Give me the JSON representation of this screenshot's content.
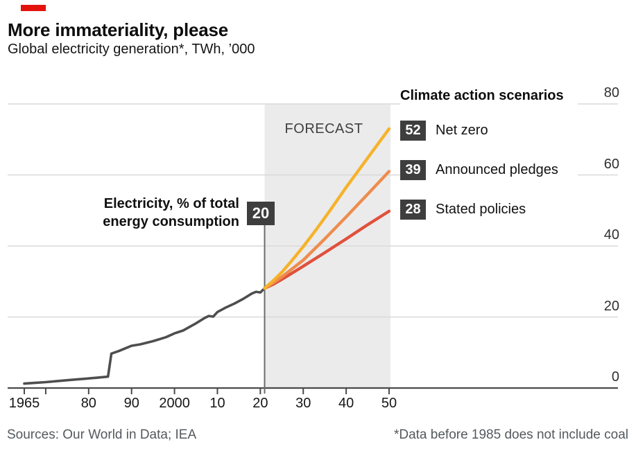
{
  "header": {
    "title": "More immateriality, please",
    "subtitle": "Global electricity generation*, TWh, ’000"
  },
  "footer": {
    "sources": "Sources: Our World in Data; IEA",
    "footnote": "*Data before 1985 does not include coal"
  },
  "colors": {
    "accent_red": "#E3120B",
    "forecast_bg": "#EBEBEB",
    "gridline": "#D9D9D9",
    "axis": "#4A4A4A",
    "badge_bg": "#3E3E3E",
    "badge_text": "#FFFFFF",
    "annotation_line": "#6B6B6B"
  },
  "chart_data": {
    "type": "line",
    "title": "More immateriality, please",
    "subtitle": "Global electricity generation*, TWh, ’000",
    "ylabel": "TWh, ’000",
    "xlabel": "",
    "grid": true,
    "legend_position": "top-right",
    "legend_title": "Climate action scenarios",
    "forecast_label": "FORECAST",
    "forecast_region": {
      "start_year": 2021,
      "end_year": 2050
    },
    "x_axis": {
      "range": [
        1965,
        2050
      ],
      "ticks": [
        {
          "year": 1965,
          "label": "1965"
        },
        {
          "year": 1970,
          "label": ""
        },
        {
          "year": 1980,
          "label": "80"
        },
        {
          "year": 1990,
          "label": "90"
        },
        {
          "year": 2000,
          "label": "2000"
        },
        {
          "year": 2010,
          "label": "10"
        },
        {
          "year": 2020,
          "label": "20"
        },
        {
          "year": 2030,
          "label": "30"
        },
        {
          "year": 2040,
          "label": "40"
        },
        {
          "year": 2050,
          "label": "50"
        }
      ]
    },
    "y_axis": {
      "ticks": [
        0,
        20,
        40,
        60,
        80
      ],
      "max": 80,
      "range": [
        0,
        80
      ]
    },
    "annotation": {
      "line1": "Electricity, % of total",
      "line2": "energy consumption",
      "share_pct": "20",
      "year": 2021
    },
    "series": {
      "historical": {
        "name": "Global electricity generation (historical)",
        "color": "#4E4E4E",
        "points": [
          [
            1965,
            1.25
          ],
          [
            1968,
            1.5
          ],
          [
            1970,
            1.65
          ],
          [
            1973,
            2.0
          ],
          [
            1976,
            2.3
          ],
          [
            1979,
            2.6
          ],
          [
            1982,
            2.9
          ],
          [
            1984.5,
            3.2
          ],
          [
            1985.3,
            9.7
          ],
          [
            1987,
            10.4
          ],
          [
            1989,
            11.4
          ],
          [
            1990,
            11.9
          ],
          [
            1992,
            12.3
          ],
          [
            1995,
            13.2
          ],
          [
            1998,
            14.3
          ],
          [
            2000,
            15.4
          ],
          [
            2002,
            16.2
          ],
          [
            2005,
            18.2
          ],
          [
            2007,
            19.7
          ],
          [
            2008,
            20.3
          ],
          [
            2009,
            20.1
          ],
          [
            2010,
            21.4
          ],
          [
            2012,
            22.7
          ],
          [
            2014,
            23.8
          ],
          [
            2016,
            25.1
          ],
          [
            2018,
            26.6
          ],
          [
            2019,
            27.1
          ],
          [
            2020,
            26.9
          ],
          [
            2021,
            28.1
          ]
        ]
      },
      "scenarios": [
        {
          "label": "Net zero",
          "share_pct_2050": "52",
          "color": "#F6B22A",
          "value_2050": 73,
          "points": [
            [
              2021,
              28.1
            ],
            [
              2023,
              30.2
            ],
            [
              2025,
              32.6
            ],
            [
              2027,
              35.4
            ],
            [
              2030,
              39.8
            ],
            [
              2033,
              44.6
            ],
            [
              2036,
              49.6
            ],
            [
              2040,
              56.5
            ],
            [
              2045,
              64.8
            ],
            [
              2050,
              73
            ]
          ]
        },
        {
          "label": "Announced pledges",
          "share_pct_2050": "39",
          "color": "#EE8C4D",
          "value_2050": 61,
          "points": [
            [
              2021,
              28.1
            ],
            [
              2023,
              29.6
            ],
            [
              2025,
              31.3
            ],
            [
              2030,
              36
            ],
            [
              2035,
              42
            ],
            [
              2040,
              48.2
            ],
            [
              2045,
              54.6
            ],
            [
              2050,
              61
            ]
          ]
        },
        {
          "label": "Stated policies",
          "share_pct_2050": "28",
          "color": "#E0513C",
          "value_2050": 49.8,
          "points": [
            [
              2021,
              28.1
            ],
            [
              2023,
              29.2
            ],
            [
              2025,
              30.6
            ],
            [
              2030,
              34.3
            ],
            [
              2035,
              38.1
            ],
            [
              2040,
              42
            ],
            [
              2045,
              46
            ],
            [
              2050,
              49.8
            ]
          ]
        }
      ]
    }
  }
}
